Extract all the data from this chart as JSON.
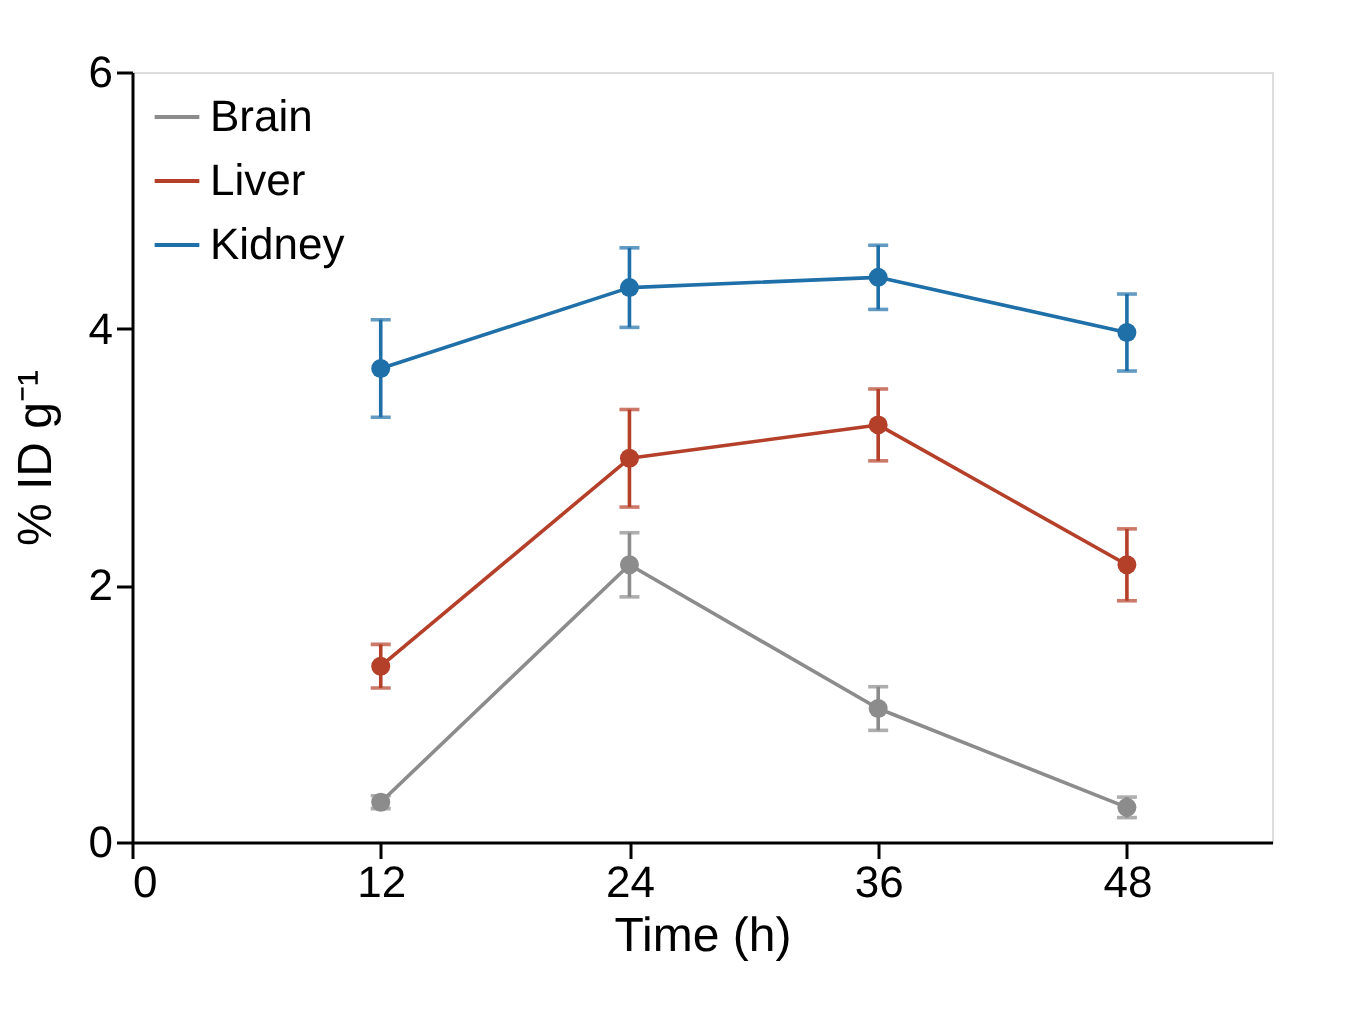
{
  "chart_data": {
    "type": "line",
    "xlabel": "Time (h)",
    "ylabel": "% ID g⁻¹",
    "x": [
      12,
      24,
      36,
      48
    ],
    "series": [
      {
        "name": "Brain",
        "color": "#8c8c8c",
        "values": [
          0.31,
          2.16,
          1.04,
          0.27
        ],
        "errors": [
          0.05,
          0.25,
          0.17,
          0.08
        ]
      },
      {
        "name": "Liver",
        "color": "#b5402a",
        "values": [
          1.37,
          2.99,
          3.25,
          2.16
        ],
        "errors": [
          0.17,
          0.38,
          0.28,
          0.28
        ]
      },
      {
        "name": "Kidney",
        "color": "#1f6fa8",
        "values": [
          3.69,
          4.32,
          4.4,
          3.97
        ],
        "errors": [
          0.38,
          0.31,
          0.25,
          0.3
        ]
      }
    ],
    "xlim": [
      0,
      55
    ],
    "xticks": [
      0,
      12,
      24,
      36,
      48
    ],
    "ylim": [
      0,
      6
    ],
    "yticks": [
      0,
      2,
      4,
      6
    ],
    "grid": false,
    "legend": "top left",
    "marker": "circle",
    "line_style": "solid"
  }
}
